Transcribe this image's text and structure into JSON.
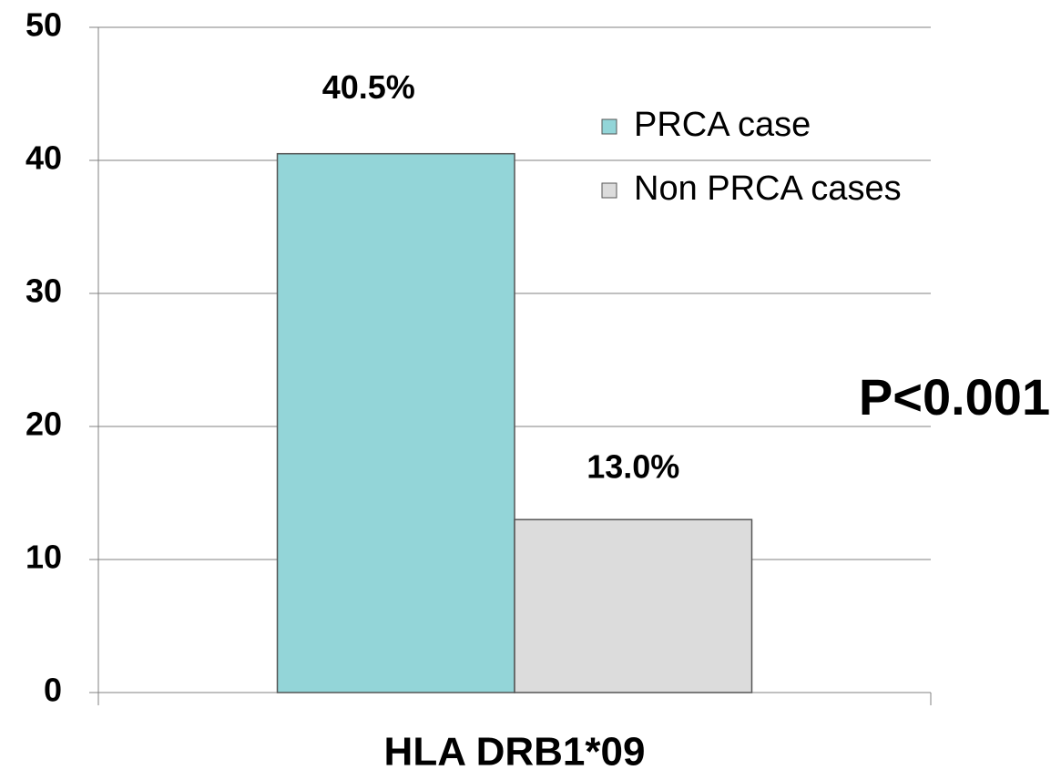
{
  "chart_data": {
    "type": "bar",
    "categories": [
      "HLA DRB1*09"
    ],
    "series": [
      {
        "name": "PRCA case",
        "color": "#93d5d8",
        "values": [
          40.5
        ],
        "value_labels": [
          "40.5%"
        ]
      },
      {
        "name": "Non PRCA cases",
        "color": "#dcdcdc",
        "values": [
          13.0
        ],
        "value_labels": [
          "13.0%"
        ]
      }
    ],
    "annotation": "P<0.001",
    "ylim": [
      0,
      50
    ],
    "yticks": [
      0,
      10,
      20,
      30,
      40,
      50
    ],
    "grid": true,
    "legend": "upper right"
  }
}
